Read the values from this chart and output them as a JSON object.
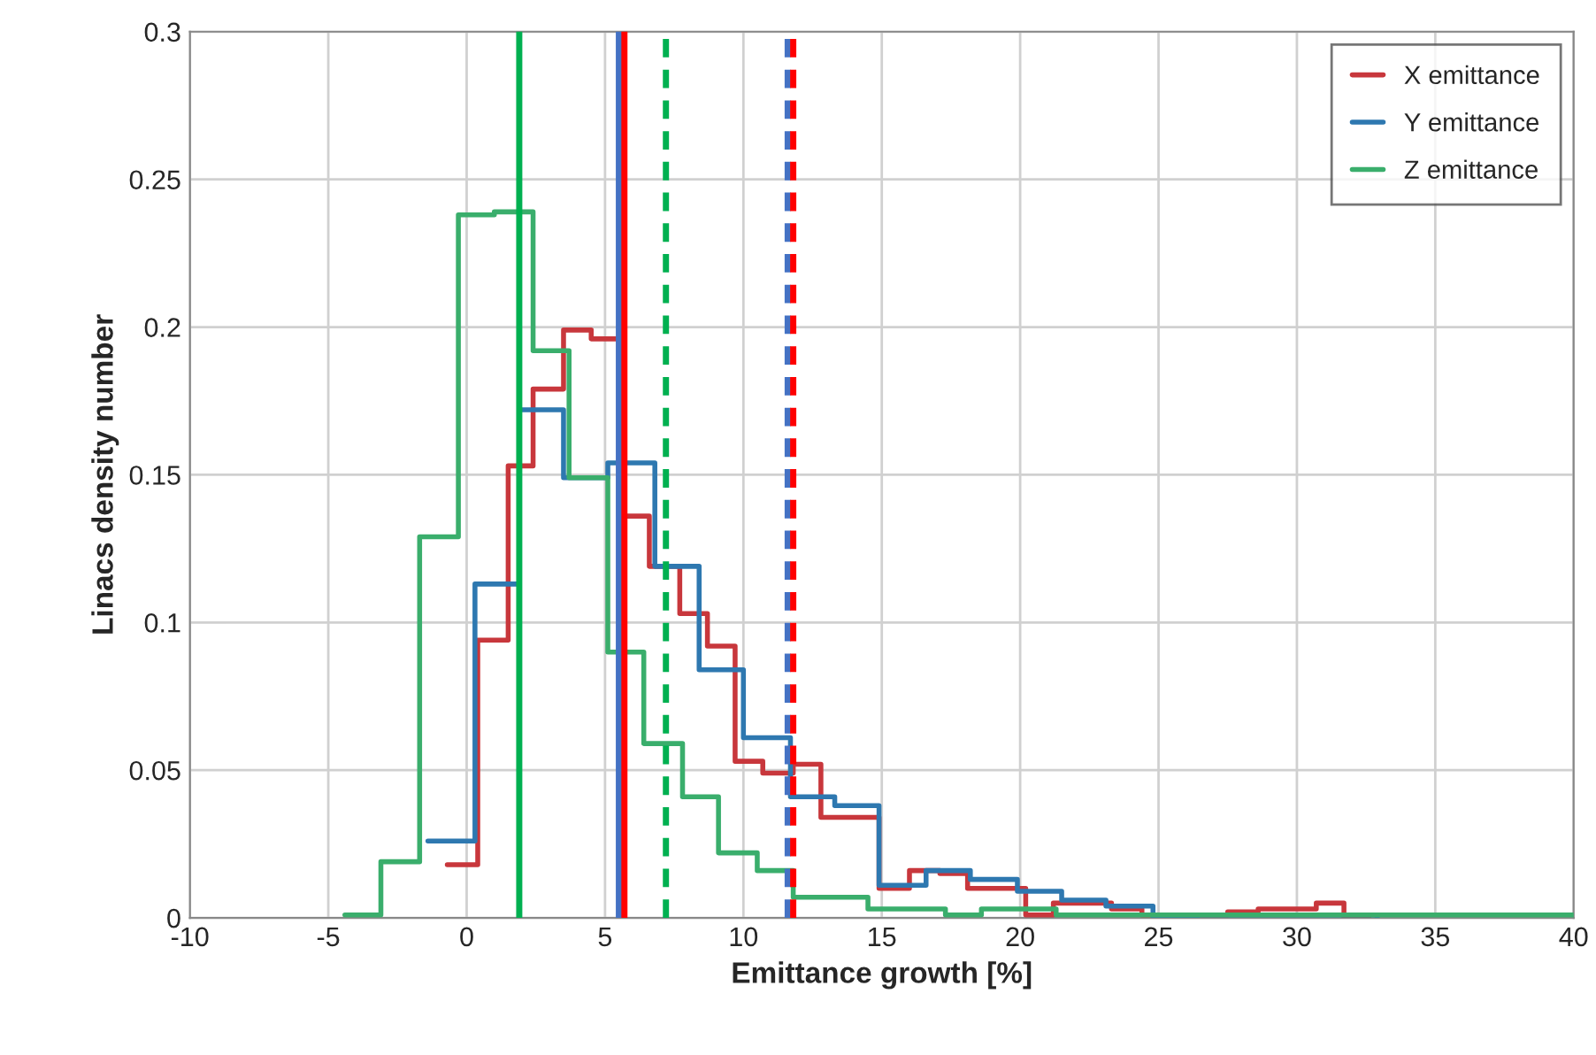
{
  "chart_data": {
    "type": "step",
    "xlabel": "Emittance growth [%]",
    "ylabel": "Linacs density number",
    "xlim": [
      -10,
      40
    ],
    "xticks": [
      -10,
      -5,
      0,
      5,
      10,
      15,
      20,
      25,
      30,
      35,
      40
    ],
    "ylim": [
      0,
      0.3
    ],
    "yticks": [
      0,
      0.05,
      0.1,
      0.15,
      0.2,
      0.25,
      0.3
    ],
    "grid": true,
    "legend": "top right",
    "series": [
      {
        "name": "X emittance",
        "color": "#c8373c",
        "x": [
          -0.7,
          0.4,
          1.5,
          2.4,
          3.5,
          4.5,
          5.5,
          6.6,
          7.7,
          8.7,
          9.7,
          10.7,
          11.8,
          12.8,
          13.9,
          14.9,
          16.0,
          17.1,
          18.1,
          19.2,
          20.2,
          21.2,
          22.3,
          23.3,
          24.4,
          27.5,
          28.6,
          29.6,
          30.7,
          31.7,
          32.6
        ],
        "values": [
          0.018,
          0.094,
          0.153,
          0.179,
          0.199,
          0.196,
          0.136,
          0.119,
          0.103,
          0.092,
          0.053,
          0.049,
          0.052,
          0.034,
          0.034,
          0.01,
          0.016,
          0.015,
          0.01,
          0.01,
          0.001,
          0.005,
          0.005,
          0.003,
          0.001,
          0.002,
          0.003,
          0.003,
          0.005,
          0.0,
          0.0
        ]
      },
      {
        "name": "Y emittance",
        "color": "#2e78b0",
        "x": [
          -1.4,
          0.3,
          1.9,
          3.5,
          5.1,
          6.8,
          8.4,
          10.0,
          11.7,
          13.3,
          14.9,
          16.6,
          18.2,
          19.9,
          21.5,
          23.1,
          24.8,
          26.4,
          28.1,
          29.7,
          31.3,
          32.9
        ],
        "values": [
          0.026,
          0.113,
          0.172,
          0.149,
          0.154,
          0.119,
          0.084,
          0.061,
          0.041,
          0.038,
          0.011,
          0.016,
          0.013,
          0.009,
          0.006,
          0.004,
          0.0,
          0.001,
          0.001,
          0.001,
          0.001,
          0.0
        ]
      },
      {
        "name": "Z emittance",
        "color": "#3aae6c",
        "x": [
          -4.4,
          -3.1,
          -1.7,
          -0.3,
          1.0,
          2.4,
          3.7,
          5.1,
          6.4,
          7.8,
          9.1,
          10.5,
          11.8,
          13.2,
          14.5,
          15.9,
          17.3,
          18.6,
          20.0,
          21.3,
          40.0
        ],
        "values": [
          0.001,
          0.019,
          0.129,
          0.238,
          0.239,
          0.192,
          0.149,
          0.09,
          0.059,
          0.041,
          0.022,
          0.016,
          0.007,
          0.007,
          0.003,
          0.003,
          0.001,
          0.003,
          0.003,
          0.001,
          0.001
        ]
      }
    ],
    "ref_lines": [
      {
        "axis": "x",
        "value": 1.9,
        "color": "#00b050",
        "line_style": "solid"
      },
      {
        "axis": "x",
        "value": 5.5,
        "color": "#4472c4",
        "line_style": "solid"
      },
      {
        "axis": "x",
        "value": 5.7,
        "color": "#ff0000",
        "line_style": "solid"
      },
      {
        "axis": "x",
        "value": 7.2,
        "color": "#00b050",
        "line_style": "dashed"
      },
      {
        "axis": "x",
        "value": 11.6,
        "color": "#4472c4",
        "line_style": "dashed"
      },
      {
        "axis": "x",
        "value": 11.8,
        "color": "#ff0000",
        "line_style": "dashed"
      }
    ]
  }
}
